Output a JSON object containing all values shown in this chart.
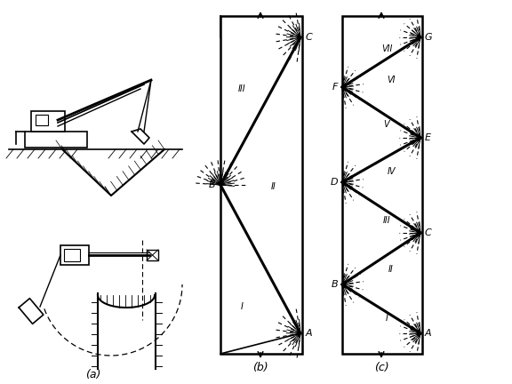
{
  "fig_width": 5.76,
  "fig_height": 4.32,
  "dpi": 100,
  "bg_color": "#ffffff",
  "label_a": "(a)",
  "label_b": "(b)",
  "label_c": "(c)"
}
